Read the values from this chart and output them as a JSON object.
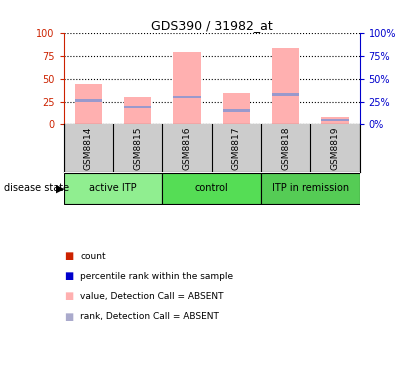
{
  "title": "GDS390 / 31982_at",
  "samples": [
    "GSM8814",
    "GSM8815",
    "GSM8816",
    "GSM8817",
    "GSM8818",
    "GSM8819"
  ],
  "pink_bar_values": [
    44,
    30,
    79,
    34,
    84,
    8
  ],
  "blue_marker_values": [
    26,
    19,
    30,
    15,
    33,
    5
  ],
  "groups": [
    {
      "label": "active ITP",
      "color": "#90EE90",
      "span": [
        0,
        1
      ]
    },
    {
      "label": "control",
      "color": "#55DD55",
      "span": [
        2,
        3
      ]
    },
    {
      "label": "ITP in remission",
      "color": "#55CC55",
      "span": [
        4,
        5
      ]
    }
  ],
  "ylim": [
    0,
    100
  ],
  "yticks": [
    0,
    25,
    50,
    75,
    100
  ],
  "left_axis_color": "#CC2200",
  "right_axis_color": "#0000CC",
  "pink_bar_color": "#FFB0B0",
  "blue_marker_color": "#9999CC",
  "legend_colors": [
    "#CC2200",
    "#0000CC",
    "#FFB0B0",
    "#AAAACC"
  ],
  "legend_labels": [
    "count",
    "percentile rank within the sample",
    "value, Detection Call = ABSENT",
    "rank, Detection Call = ABSENT"
  ],
  "disease_state_label": "disease state",
  "bar_width": 0.55,
  "background_color": "#FFFFFF",
  "plot_bg_color": "#FFFFFF",
  "sample_bg_color": "#CCCCCC",
  "tick_label_fontsize": 7,
  "title_fontsize": 9,
  "legend_fontsize": 6.5,
  "sample_fontsize": 6.5,
  "group_fontsize": 7
}
